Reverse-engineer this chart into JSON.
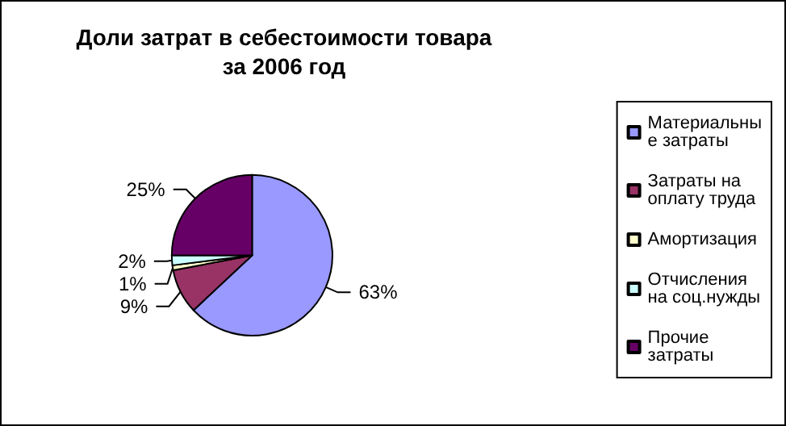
{
  "chart_data": {
    "type": "pie",
    "title": "Доли затрат в себестоимости товара\nза 2006 год",
    "categories": [
      "Материальные затраты",
      "Затраты на оплату труда",
      "Амортизация",
      "Отчисления на соц.нужды",
      "Прочие затраты"
    ],
    "values": [
      63,
      9,
      1,
      2,
      25
    ],
    "colors": [
      "#9999ff",
      "#993366",
      "#ffffcc",
      "#ccffff",
      "#660066"
    ],
    "value_labels": [
      "63%",
      "9%",
      "1%",
      "2%",
      "25%"
    ],
    "legend": "right"
  }
}
